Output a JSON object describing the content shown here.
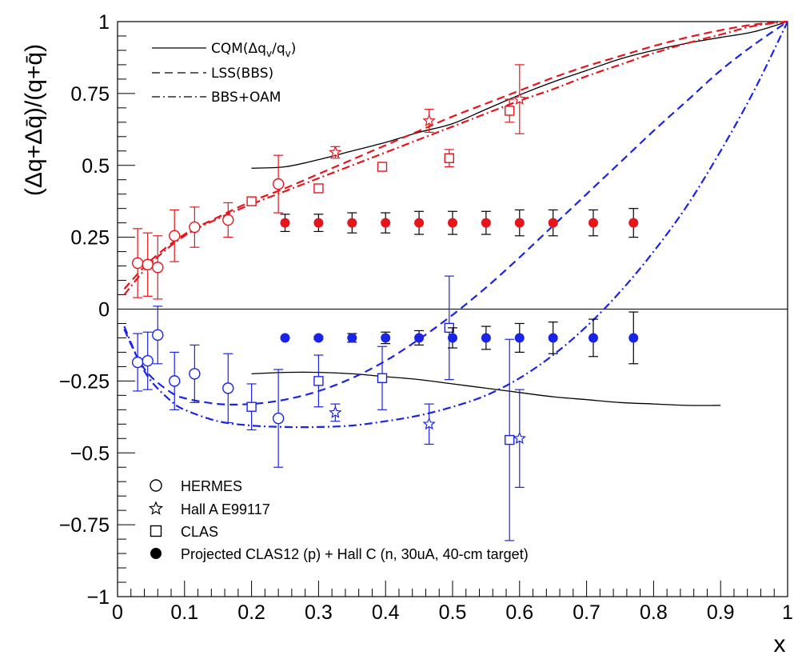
{
  "chart_data": {
    "type": "scatter",
    "title": "",
    "xlabel": "x",
    "ylabel": "(Δq+Δq̄)/(q+q̄)",
    "xlim": [
      0,
      1
    ],
    "ylim": [
      -1,
      1
    ],
    "x_ticks": [
      "0",
      "0.1",
      "0.2",
      "0.3",
      "0.4",
      "0.5",
      "0.6",
      "0.7",
      "0.8",
      "0.9",
      "1"
    ],
    "y_ticks": [
      "−1",
      "−0.75",
      "−0.5",
      "−0.25",
      "0",
      "0.25",
      "0.5",
      "0.75",
      "1"
    ],
    "grid": false,
    "colors": {
      "up": "#e8141c",
      "down": "#1a24e8",
      "black": "#000000"
    },
    "legend_curves": {
      "placement": "top-left",
      "entries": [
        {
          "label": "CQM(Δq",
          "label_sub": "v",
          "label_mid": "/q",
          "label_sub2": "v",
          "label_end": ")",
          "style": "solid"
        },
        {
          "label": "LSS(BBS)",
          "style": "dashed"
        },
        {
          "label": "BBS+OAM",
          "style": "dashdot"
        }
      ]
    },
    "legend_data": {
      "placement": "bottom-left",
      "entries": [
        {
          "label": "HERMES",
          "marker": "open-circle"
        },
        {
          "label": "Hall A E99117",
          "marker": "open-star"
        },
        {
          "label": "CLAS",
          "marker": "open-square"
        },
        {
          "label": "Projected CLAS12 (p) + Hall C (n, 30uA, 40-cm target)",
          "marker": "filled-circle"
        }
      ]
    },
    "curves": [
      {
        "name": "CQM up",
        "style": "solid",
        "color": "black",
        "x": [
          0.2,
          0.25,
          0.3,
          0.35,
          0.4,
          0.45,
          0.5,
          0.55,
          0.6,
          0.65,
          0.7,
          0.75,
          0.8,
          0.85,
          0.9,
          0.95,
          1.0
        ],
        "y": [
          0.49,
          0.495,
          0.52,
          0.55,
          0.58,
          0.615,
          0.645,
          0.695,
          0.745,
          0.79,
          0.83,
          0.87,
          0.9,
          0.925,
          0.945,
          0.965,
          1.0
        ]
      },
      {
        "name": "CQM down",
        "style": "solid",
        "color": "black",
        "x": [
          0.2,
          0.25,
          0.3,
          0.35,
          0.4,
          0.45,
          0.5,
          0.55,
          0.6,
          0.65,
          0.7,
          0.75,
          0.8,
          0.85,
          0.9
        ],
        "y": [
          -0.225,
          -0.22,
          -0.22,
          -0.225,
          -0.235,
          -0.245,
          -0.26,
          -0.275,
          -0.29,
          -0.305,
          -0.315,
          -0.325,
          -0.33,
          -0.335,
          -0.335
        ]
      },
      {
        "name": "LSS up",
        "style": "dashed",
        "color": "up",
        "x": [
          0.01,
          0.05,
          0.1,
          0.15,
          0.2,
          0.25,
          0.3,
          0.35,
          0.4,
          0.45,
          0.5,
          0.55,
          0.6,
          0.65,
          0.7,
          0.75,
          0.8,
          0.85,
          0.9,
          0.95,
          1.0
        ],
        "y": [
          0.07,
          0.17,
          0.26,
          0.32,
          0.375,
          0.42,
          0.47,
          0.52,
          0.57,
          0.62,
          0.67,
          0.715,
          0.76,
          0.805,
          0.845,
          0.88,
          0.915,
          0.945,
          0.97,
          0.99,
          1.0
        ]
      },
      {
        "name": "BBS+OAM up",
        "style": "dashdot",
        "color": "up",
        "x": [
          0.01,
          0.05,
          0.1,
          0.15,
          0.2,
          0.25,
          0.3,
          0.35,
          0.4,
          0.45,
          0.5,
          0.55,
          0.6,
          0.65,
          0.7,
          0.75,
          0.8,
          0.85,
          0.9,
          0.95,
          1.0
        ],
        "y": [
          0.05,
          0.16,
          0.255,
          0.315,
          0.365,
          0.41,
          0.455,
          0.5,
          0.545,
          0.59,
          0.635,
          0.68,
          0.725,
          0.765,
          0.81,
          0.85,
          0.89,
          0.925,
          0.955,
          0.985,
          1.0
        ]
      },
      {
        "name": "LSS down",
        "style": "dashed",
        "color": "down",
        "x": [
          0.01,
          0.03,
          0.05,
          0.08,
          0.1,
          0.15,
          0.2,
          0.25,
          0.3,
          0.35,
          0.4,
          0.45,
          0.5,
          0.55,
          0.6,
          0.65,
          0.7,
          0.75,
          0.8,
          0.85,
          0.9,
          0.95,
          1.0
        ],
        "y": [
          -0.07,
          -0.17,
          -0.235,
          -0.29,
          -0.31,
          -0.33,
          -0.33,
          -0.315,
          -0.285,
          -0.24,
          -0.18,
          -0.105,
          -0.02,
          0.075,
          0.18,
          0.29,
          0.4,
          0.51,
          0.62,
          0.725,
          0.83,
          0.92,
          1.0
        ]
      },
      {
        "name": "BBS+OAM down",
        "style": "dashdot",
        "color": "down",
        "x": [
          0.01,
          0.03,
          0.05,
          0.08,
          0.1,
          0.15,
          0.2,
          0.25,
          0.3,
          0.35,
          0.4,
          0.45,
          0.5,
          0.55,
          0.6,
          0.65,
          0.7,
          0.75,
          0.8,
          0.85,
          0.9,
          0.95,
          1.0
        ],
        "y": [
          -0.06,
          -0.17,
          -0.25,
          -0.32,
          -0.35,
          -0.39,
          -0.405,
          -0.41,
          -0.41,
          -0.405,
          -0.39,
          -0.37,
          -0.34,
          -0.3,
          -0.24,
          -0.16,
          -0.06,
          0.06,
          0.2,
          0.36,
          0.55,
          0.76,
          1.0
        ]
      }
    ],
    "series": [
      {
        "marker": "open-circle",
        "color": "up",
        "x": [
          0.03,
          0.045,
          0.06,
          0.085,
          0.115,
          0.165,
          0.24
        ],
        "y": [
          0.16,
          0.155,
          0.145,
          0.255,
          0.285,
          0.31,
          0.435
        ],
        "err": [
          0.12,
          0.11,
          0.11,
          0.09,
          0.07,
          0.06,
          0.1
        ]
      },
      {
        "marker": "open-square",
        "color": "up",
        "x": [
          0.2,
          0.3,
          0.395,
          0.495,
          0.585
        ],
        "y": [
          0.375,
          0.42,
          0.495,
          0.525,
          0.69
        ],
        "err": [
          0.01,
          0.01,
          0.01,
          0.03,
          0.04
        ]
      },
      {
        "marker": "open-star",
        "color": "up",
        "x": [
          0.325,
          0.465,
          0.6
        ],
        "y": [
          0.545,
          0.655,
          0.73
        ],
        "err": [
          0.02,
          0.04,
          0.12
        ]
      },
      {
        "marker": "filled-circle",
        "color": "up",
        "x": [
          0.25,
          0.3,
          0.35,
          0.4,
          0.45,
          0.5,
          0.55,
          0.6,
          0.65,
          0.71,
          0.77
        ],
        "y": [
          0.3,
          0.3,
          0.3,
          0.3,
          0.3,
          0.3,
          0.3,
          0.3,
          0.3,
          0.3,
          0.3
        ],
        "err": [
          0.03,
          0.03,
          0.035,
          0.035,
          0.04,
          0.04,
          0.04,
          0.045,
          0.045,
          0.045,
          0.05
        ]
      },
      {
        "marker": "open-circle",
        "color": "down",
        "x": [
          0.03,
          0.045,
          0.06,
          0.085,
          0.115,
          0.165,
          0.24
        ],
        "y": [
          -0.185,
          -0.18,
          -0.09,
          -0.25,
          -0.225,
          -0.275,
          -0.38
        ],
        "err": [
          0.1,
          0.1,
          0.1,
          0.1,
          0.1,
          0.12,
          0.17
        ]
      },
      {
        "marker": "open-square",
        "color": "down",
        "x": [
          0.2,
          0.3,
          0.395,
          0.495,
          0.585
        ],
        "y": [
          -0.34,
          -0.25,
          -0.24,
          -0.065,
          -0.455
        ],
        "err": [
          0.08,
          0.09,
          0.11,
          0.18,
          0.35
        ]
      },
      {
        "marker": "open-star",
        "color": "down",
        "x": [
          0.325,
          0.465,
          0.6
        ],
        "y": [
          -0.36,
          -0.4,
          -0.45
        ],
        "err": [
          0.03,
          0.07,
          0.17
        ]
      },
      {
        "marker": "filled-circle",
        "color": "down",
        "x": [
          0.25,
          0.3,
          0.35,
          0.4,
          0.45,
          0.5,
          0.55,
          0.6,
          0.65,
          0.71,
          0.77
        ],
        "y": [
          -0.1,
          -0.1,
          -0.1,
          -0.1,
          -0.1,
          -0.1,
          -0.1,
          -0.1,
          -0.1,
          -0.1,
          -0.1
        ],
        "err": [
          0,
          0.005,
          0.015,
          0.02,
          0.025,
          0.035,
          0.04,
          0.05,
          0.055,
          0.065,
          0.09
        ]
      }
    ]
  }
}
